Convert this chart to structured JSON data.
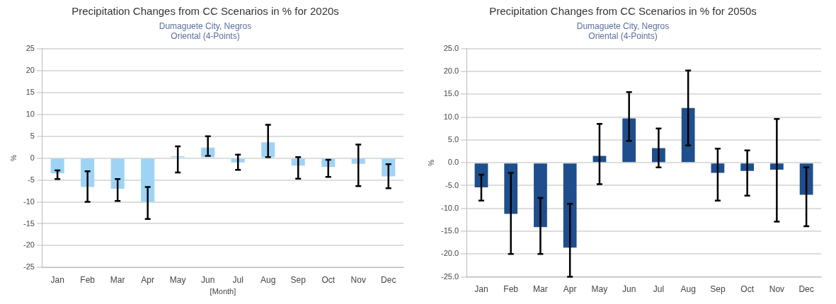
{
  "chart_data": [
    {
      "type": "bar",
      "title": "Precipitation Changes from CC Scenarios in % for 2020s",
      "subtitle": "Dumaguete City, Negros Oriental (4-Points)",
      "xlabel": "[Month]",
      "ylabel": "%",
      "categories": [
        "Jan",
        "Feb",
        "Mar",
        "Apr",
        "May",
        "Jun",
        "Jul",
        "Aug",
        "Sep",
        "Oct",
        "Nov",
        "Dec"
      ],
      "series": [
        {
          "color": "#9fd3f5",
          "values": [
            -3.5,
            -6.6,
            -7,
            -10,
            0.4,
            2.4,
            -1,
            3.6,
            -1.7,
            -2,
            -1.3,
            -4.2
          ],
          "errors": [
            [
              -4.8,
              -2.8
            ],
            [
              -10,
              -3
            ],
            [
              -9.8,
              -4.8
            ],
            [
              -13.9,
              -6.6
            ],
            [
              -3.3,
              2.7
            ],
            [
              0.5,
              5
            ],
            [
              -2.7,
              0.8
            ],
            [
              0.2,
              7.6
            ],
            [
              -4.7,
              0.2
            ],
            [
              -4.3,
              -0.4
            ],
            [
              -6.4,
              3.1
            ],
            [
              -6.9,
              -1.4
            ]
          ]
        }
      ],
      "ylim": [
        -25,
        25
      ],
      "yticks": [
        -25,
        -20,
        -15,
        -10,
        -5,
        0,
        5,
        10,
        15,
        20,
        25
      ],
      "grid": "y",
      "legend": false
    },
    {
      "type": "bar",
      "title": "Precipitation Changes from CC Scenarios in % for 2050s",
      "subtitle": "Dumaguete City, Negros Oriental (4-Points)",
      "ylabel": "%",
      "categories": [
        "Jan",
        "Feb",
        "Mar",
        "Apr",
        "May",
        "Jun",
        "Jul",
        "Aug",
        "Sep",
        "Oct",
        "Nov",
        "Dec"
      ],
      "series": [
        {
          "color": "#1f4e8c",
          "values": [
            -5.4,
            -11.2,
            -14.1,
            -18.6,
            1.5,
            9.7,
            3.2,
            12,
            -2.2,
            -1.8,
            -1.5,
            -7
          ],
          "errors": [
            [
              -8.3,
              -2.6
            ],
            [
              -20,
              -2.2
            ],
            [
              -20,
              -7.7
            ],
            [
              -25,
              -9
            ],
            [
              -4.7,
              8.5
            ],
            [
              4.8,
              15.5
            ],
            [
              -1,
              7.5
            ],
            [
              3.8,
              20.2
            ],
            [
              -8.3,
              3.1
            ],
            [
              -7.2,
              2.7
            ],
            [
              -12.9,
              9.6
            ],
            [
              -13.9,
              -1
            ]
          ]
        }
      ],
      "ylim": [
        -25,
        25
      ],
      "yticks": [
        {
          "value": -25,
          "label": "-25.0"
        },
        {
          "value": -20,
          "label": "-20.0"
        },
        {
          "value": -15,
          "label": "-15.0"
        },
        {
          "value": -10,
          "label": "-10.0"
        },
        {
          "value": -5,
          "label": "-5.0"
        },
        {
          "value": 0,
          "label": "0.0"
        },
        {
          "value": 5,
          "label": "5.0"
        },
        {
          "value": 10,
          "label": "10.0"
        },
        {
          "value": 15,
          "label": "15.0"
        },
        {
          "value": 20,
          "label": "20.0"
        },
        {
          "value": 25,
          "label": "25.0"
        }
      ],
      "grid": "y",
      "legend": false
    }
  ]
}
